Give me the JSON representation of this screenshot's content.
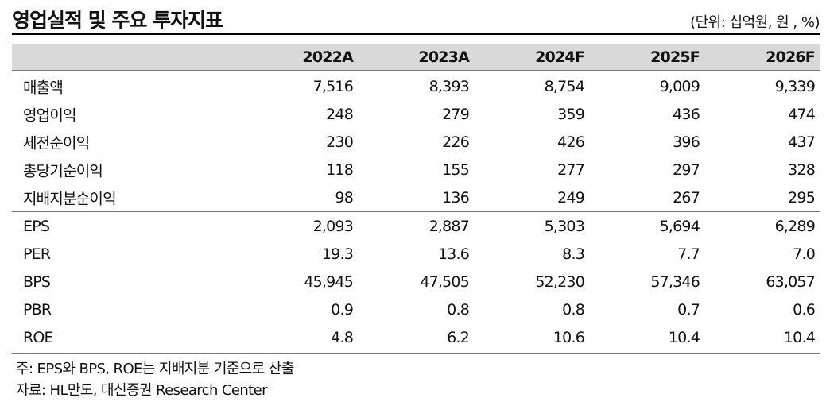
{
  "header": {
    "title": "영업실적 및 주요 투자지표",
    "unit": "(단위: 십억원, 원 , %)"
  },
  "table": {
    "columns": [
      "2022A",
      "2023A",
      "2024F",
      "2025F",
      "2026F"
    ],
    "sections": [
      [
        {
          "label": "매출액",
          "values": [
            "7,516",
            "8,393",
            "8,754",
            "9,009",
            "9,339"
          ]
        },
        {
          "label": "영업이익",
          "values": [
            "248",
            "279",
            "359",
            "436",
            "474"
          ]
        },
        {
          "label": "세전순이익",
          "values": [
            "230",
            "226",
            "426",
            "396",
            "437"
          ]
        },
        {
          "label": "총당기순이익",
          "values": [
            "118",
            "155",
            "277",
            "297",
            "328"
          ]
        },
        {
          "label": "지배지분순이익",
          "values": [
            "98",
            "136",
            "249",
            "267",
            "295"
          ]
        }
      ],
      [
        {
          "label": "EPS",
          "values": [
            "2,093",
            "2,887",
            "5,303",
            "5,694",
            "6,289"
          ]
        },
        {
          "label": "PER",
          "values": [
            "19.3",
            "13.6",
            "8.3",
            "7.7",
            "7.0"
          ]
        },
        {
          "label": "BPS",
          "values": [
            "45,945",
            "47,505",
            "52,230",
            "57,346",
            "63,057"
          ]
        },
        {
          "label": "PBR",
          "values": [
            "0.9",
            "0.8",
            "0.8",
            "0.7",
            "0.6"
          ]
        },
        {
          "label": "ROE",
          "values": [
            "4.8",
            "6.2",
            "10.6",
            "10.4",
            "10.4"
          ]
        }
      ]
    ]
  },
  "notes": [
    "주: EPS와 BPS, ROE는 지배지분 기준으로 산출",
    "자료: HL만도, 대신증권 Research Center"
  ]
}
